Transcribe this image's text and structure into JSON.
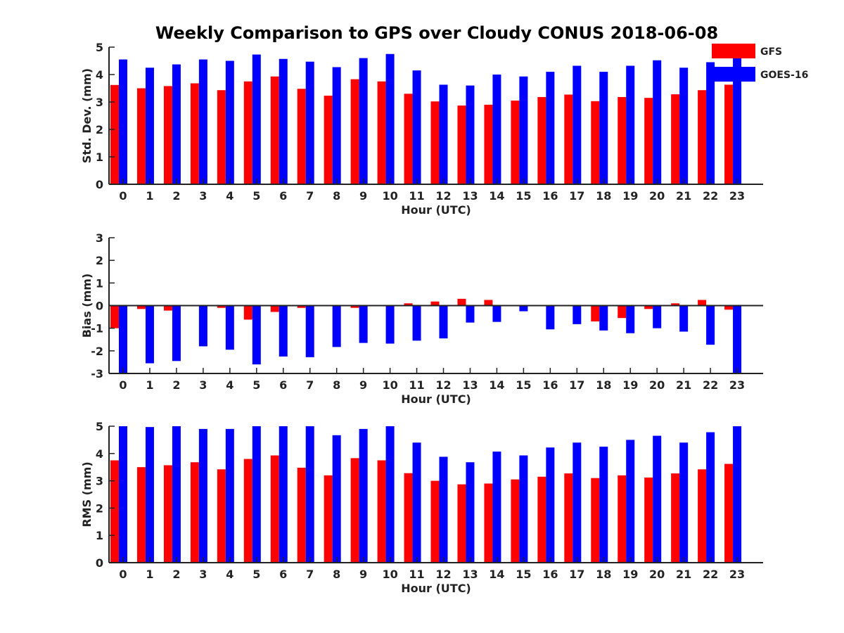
{
  "chart_data": [
    {
      "type": "bar",
      "title": "Weekly Comparison to GPS over Cloudy CONUS 2018-06-08",
      "xlabel": "Hour (UTC)",
      "ylabel": "Std. Dev. (mm)",
      "ylim": [
        0,
        5
      ],
      "yticks": [
        "0",
        "1",
        "2",
        "3",
        "4",
        "5"
      ],
      "categories": [
        "0",
        "1",
        "2",
        "3",
        "4",
        "5",
        "6",
        "7",
        "8",
        "9",
        "10",
        "11",
        "12",
        "13",
        "14",
        "15",
        "16",
        "17",
        "18",
        "19",
        "20",
        "21",
        "22",
        "23"
      ],
      "series": [
        {
          "name": "GFS",
          "color": "#ff0000",
          "values": [
            3.62,
            3.5,
            3.58,
            3.68,
            3.43,
            3.75,
            3.93,
            3.48,
            3.23,
            3.83,
            3.75,
            3.3,
            3.02,
            2.87,
            2.9,
            3.05,
            3.18,
            3.27,
            3.03,
            3.18,
            3.15,
            3.28,
            3.43,
            3.63
          ]
        },
        {
          "name": "GOES-16",
          "color": "#0000ff",
          "values": [
            4.55,
            4.25,
            4.37,
            4.55,
            4.5,
            4.73,
            4.57,
            4.47,
            4.27,
            4.6,
            4.75,
            4.15,
            3.63,
            3.6,
            4.0,
            3.93,
            4.1,
            4.32,
            4.1,
            4.32,
            4.52,
            4.25,
            4.45,
            4.6
          ]
        }
      ],
      "legend": "top-right",
      "grid": false
    },
    {
      "type": "bar",
      "xlabel": "Hour (UTC)",
      "ylabel": "Bias (mm)",
      "ylim": [
        -3,
        3
      ],
      "yticks": [
        "-3",
        "-2",
        "-1",
        "0",
        "1",
        "2",
        "3"
      ],
      "categories": [
        "0",
        "1",
        "2",
        "3",
        "4",
        "5",
        "6",
        "7",
        "8",
        "9",
        "10",
        "11",
        "12",
        "13",
        "14",
        "15",
        "16",
        "17",
        "18",
        "19",
        "20",
        "21",
        "22",
        "23"
      ],
      "series": [
        {
          "name": "GFS",
          "color": "#ff0000",
          "values": [
            -1.0,
            -0.15,
            -0.22,
            -0.03,
            -0.1,
            -0.62,
            -0.28,
            -0.1,
            -0.02,
            -0.1,
            -0.02,
            0.1,
            0.18,
            0.3,
            0.25,
            0.03,
            -0.02,
            -0.02,
            -0.7,
            -0.55,
            -0.15,
            0.1,
            0.25,
            -0.18
          ]
        },
        {
          "name": "GOES-16",
          "color": "#0000ff",
          "values": [
            -3.0,
            -2.55,
            -2.45,
            -1.8,
            -1.95,
            -2.6,
            -2.25,
            -2.28,
            -1.83,
            -1.65,
            -1.68,
            -1.55,
            -1.45,
            -0.75,
            -0.72,
            -0.25,
            -1.05,
            -0.82,
            -1.1,
            -1.22,
            -1.0,
            -1.15,
            -1.73,
            -3.0
          ]
        }
      ],
      "grid": false
    },
    {
      "type": "bar",
      "xlabel": "Hour (UTC)",
      "ylabel": "RMS (mm)",
      "ylim": [
        0,
        5
      ],
      "yticks": [
        "0",
        "1",
        "2",
        "3",
        "4",
        "5"
      ],
      "categories": [
        "0",
        "1",
        "2",
        "3",
        "4",
        "5",
        "6",
        "7",
        "8",
        "9",
        "10",
        "11",
        "12",
        "13",
        "14",
        "15",
        "16",
        "17",
        "18",
        "19",
        "20",
        "21",
        "22",
        "23"
      ],
      "series": [
        {
          "name": "GFS",
          "color": "#ff0000",
          "values": [
            3.75,
            3.5,
            3.57,
            3.68,
            3.42,
            3.8,
            3.93,
            3.48,
            3.2,
            3.83,
            3.75,
            3.28,
            3.0,
            2.87,
            2.9,
            3.05,
            3.15,
            3.27,
            3.1,
            3.2,
            3.12,
            3.27,
            3.42,
            3.62
          ]
        },
        {
          "name": "GOES-16",
          "color": "#0000ff",
          "values": [
            5.0,
            4.97,
            5.0,
            4.9,
            4.9,
            5.0,
            5.0,
            5.0,
            4.67,
            4.9,
            5.0,
            4.4,
            3.88,
            3.68,
            4.07,
            3.93,
            4.22,
            4.4,
            4.25,
            4.5,
            4.65,
            4.4,
            4.78,
            5.0
          ]
        }
      ],
      "grid": false
    }
  ]
}
